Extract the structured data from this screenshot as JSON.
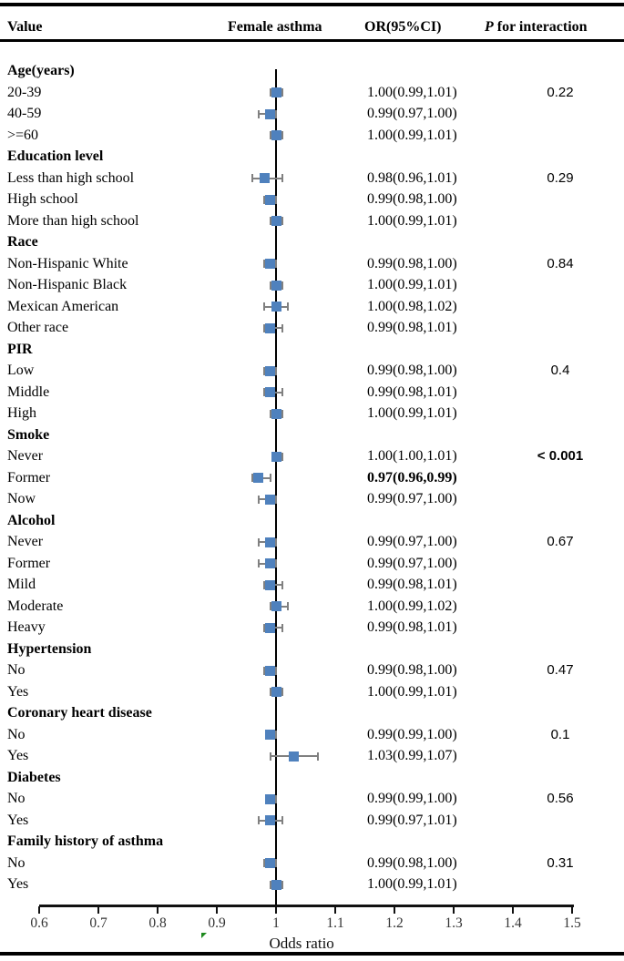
{
  "header": {
    "col_value": "Value",
    "col_plot": "Female asthma",
    "col_or": "OR(95%CI)",
    "col_p_italic": "P",
    "col_p_rest": " for interaction"
  },
  "colors": {
    "marker": "#4f81bd",
    "whisker": "#808080",
    "rule": "#000000",
    "tick_text": "#333333",
    "artifact_green": "#1e8a1e"
  },
  "chart_data": {
    "type": "forest",
    "xlabel": "Odds ratio",
    "xlim": [
      0.6,
      1.5
    ],
    "x_ticks": [
      0.6,
      0.7,
      0.8,
      0.9,
      1,
      1.1,
      1.2,
      1.3,
      1.4,
      1.5
    ],
    "x_tick_labels": [
      "0.6",
      "0.7",
      "0.8",
      "0.9",
      "1",
      "1.1",
      "1.2",
      "1.3",
      "1.4",
      "1.5"
    ],
    "ref_line": 1,
    "columns": [
      "Value",
      "Female asthma",
      "OR(95%CI)",
      "P for interaction"
    ],
    "groups": [
      {
        "name": "Age(years)",
        "p_interaction": "0.22",
        "p_bold": false,
        "items": [
          {
            "label": "20-39",
            "or": 1.0,
            "ci_low": 0.99,
            "ci_high": 1.01,
            "or_text": "1.00(0.99,1.01)",
            "bold": false
          },
          {
            "label": "40-59",
            "or": 0.99,
            "ci_low": 0.97,
            "ci_high": 1.0,
            "or_text": "0.99(0.97,1.00)",
            "bold": false
          },
          {
            "label": ">=60",
            "or": 1.0,
            "ci_low": 0.99,
            "ci_high": 1.01,
            "or_text": "1.00(0.99,1.01)",
            "bold": false
          }
        ]
      },
      {
        "name": "Education level",
        "p_interaction": "0.29",
        "p_bold": false,
        "items": [
          {
            "label": "Less than high school",
            "or": 0.98,
            "ci_low": 0.96,
            "ci_high": 1.01,
            "or_text": "0.98(0.96,1.01)",
            "bold": false
          },
          {
            "label": "High school",
            "or": 0.99,
            "ci_low": 0.98,
            "ci_high": 1.0,
            "or_text": "0.99(0.98,1.00)",
            "bold": false
          },
          {
            "label": "More than high school",
            "or": 1.0,
            "ci_low": 0.99,
            "ci_high": 1.01,
            "or_text": "1.00(0.99,1.01)",
            "bold": false
          }
        ]
      },
      {
        "name": "Race",
        "p_interaction": "0.84",
        "p_bold": false,
        "items": [
          {
            "label": "Non-Hispanic White",
            "or": 0.99,
            "ci_low": 0.98,
            "ci_high": 1.0,
            "or_text": "0.99(0.98,1.00)",
            "bold": false
          },
          {
            "label": "Non-Hispanic Black",
            "or": 1.0,
            "ci_low": 0.99,
            "ci_high": 1.01,
            "or_text": "1.00(0.99,1.01)",
            "bold": false
          },
          {
            "label": "Mexican American",
            "or": 1.0,
            "ci_low": 0.98,
            "ci_high": 1.02,
            "or_text": "1.00(0.98,1.02)",
            "bold": false
          },
          {
            "label": "Other race",
            "or": 0.99,
            "ci_low": 0.98,
            "ci_high": 1.01,
            "or_text": "0.99(0.98,1.01)",
            "bold": false
          }
        ]
      },
      {
        "name": "PIR",
        "p_interaction": "0.4",
        "p_bold": false,
        "items": [
          {
            "label": "Low",
            "or": 0.99,
            "ci_low": 0.98,
            "ci_high": 1.0,
            "or_text": "0.99(0.98,1.00)",
            "bold": false
          },
          {
            "label": "Middle",
            "or": 0.99,
            "ci_low": 0.98,
            "ci_high": 1.01,
            "or_text": "0.99(0.98,1.01)",
            "bold": false
          },
          {
            "label": "High",
            "or": 1.0,
            "ci_low": 0.99,
            "ci_high": 1.01,
            "or_text": "1.00(0.99,1.01)",
            "bold": false
          }
        ]
      },
      {
        "name": "Smoke",
        "p_interaction": "< 0.001",
        "p_bold": true,
        "items": [
          {
            "label": "Never",
            "or": 1.0,
            "ci_low": 1.0,
            "ci_high": 1.01,
            "or_text": "1.00(1.00,1.01)",
            "bold": false
          },
          {
            "label": "Former",
            "or": 0.97,
            "ci_low": 0.96,
            "ci_high": 0.99,
            "or_text": "0.97(0.96,0.99)",
            "bold": true
          },
          {
            "label": "Now",
            "or": 0.99,
            "ci_low": 0.97,
            "ci_high": 1.0,
            "or_text": "0.99(0.97,1.00)",
            "bold": false
          }
        ]
      },
      {
        "name": "Alcohol",
        "p_interaction": "0.67",
        "p_bold": false,
        "items": [
          {
            "label": "Never",
            "or": 0.99,
            "ci_low": 0.97,
            "ci_high": 1.0,
            "or_text": "0.99(0.97,1.00)",
            "bold": false
          },
          {
            "label": "Former",
            "or": 0.99,
            "ci_low": 0.97,
            "ci_high": 1.0,
            "or_text": "0.99(0.97,1.00)",
            "bold": false
          },
          {
            "label": "Mild",
            "or": 0.99,
            "ci_low": 0.98,
            "ci_high": 1.01,
            "or_text": "0.99(0.98,1.01)",
            "bold": false
          },
          {
            "label": "Moderate",
            "or": 1.0,
            "ci_low": 0.99,
            "ci_high": 1.02,
            "or_text": "1.00(0.99,1.02)",
            "bold": false
          },
          {
            "label": "Heavy",
            "or": 0.99,
            "ci_low": 0.98,
            "ci_high": 1.01,
            "or_text": "0.99(0.98,1.01)",
            "bold": false
          }
        ]
      },
      {
        "name": "Hypertension",
        "p_interaction": "0.47",
        "p_bold": false,
        "items": [
          {
            "label": "No",
            "or": 0.99,
            "ci_low": 0.98,
            "ci_high": 1.0,
            "or_text": "0.99(0.98,1.00)",
            "bold": false
          },
          {
            "label": "Yes",
            "or": 1.0,
            "ci_low": 0.99,
            "ci_high": 1.01,
            "or_text": "1.00(0.99,1.01)",
            "bold": false
          }
        ]
      },
      {
        "name": "Coronary heart disease",
        "p_interaction": "0.1",
        "p_bold": false,
        "items": [
          {
            "label": "No",
            "or": 0.99,
            "ci_low": 0.99,
            "ci_high": 1.0,
            "or_text": "0.99(0.99,1.00)",
            "bold": false
          },
          {
            "label": "Yes",
            "or": 1.03,
            "ci_low": 0.99,
            "ci_high": 1.07,
            "or_text": "1.03(0.99,1.07)",
            "bold": false
          }
        ]
      },
      {
        "name": "Diabetes",
        "p_interaction": "0.56",
        "p_bold": false,
        "items": [
          {
            "label": "No",
            "or": 0.99,
            "ci_low": 0.99,
            "ci_high": 1.0,
            "or_text": "0.99(0.99,1.00)",
            "bold": false
          },
          {
            "label": "Yes",
            "or": 0.99,
            "ci_low": 0.97,
            "ci_high": 1.01,
            "or_text": "0.99(0.97,1.01)",
            "bold": false
          }
        ]
      },
      {
        "name": "Family history of asthma",
        "p_interaction": "0.31",
        "p_bold": false,
        "items": [
          {
            "label": "No",
            "or": 0.99,
            "ci_low": 0.98,
            "ci_high": 1.0,
            "or_text": "0.99(0.98,1.00)",
            "bold": false
          },
          {
            "label": "Yes",
            "or": 1.0,
            "ci_low": 0.99,
            "ci_high": 1.01,
            "or_text": "1.00(0.99,1.01)",
            "bold": false
          }
        ]
      }
    ]
  }
}
